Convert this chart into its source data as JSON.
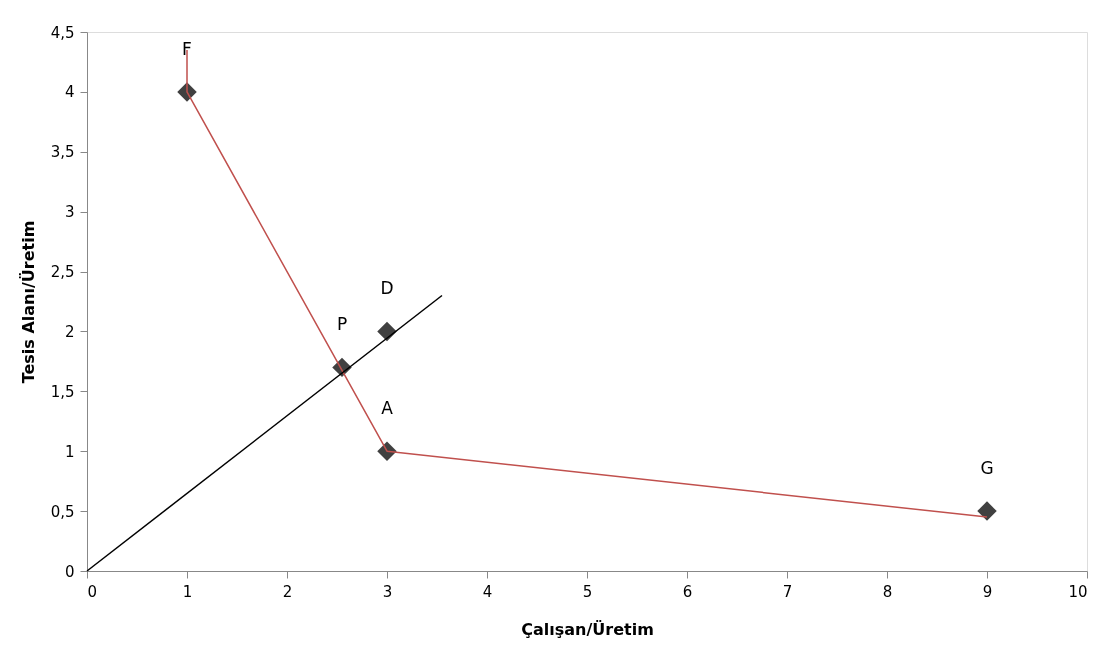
{
  "chart_data": {
    "type": "scatter",
    "xlabel": "Çalışan/Üretim",
    "ylabel": "Tesis Alanı/Üretim",
    "xlim": [
      0,
      10
    ],
    "xticks": [
      0,
      1,
      2,
      3,
      4,
      5,
      6,
      7,
      8,
      9,
      10
    ],
    "ylim": [
      0,
      4.5
    ],
    "yticks": [
      0,
      {
        "value": 0.5,
        "label": "0,5"
      },
      1,
      {
        "value": 1.5,
        "label": "1,5"
      },
      2,
      {
        "value": 2.5,
        "label": "2,5"
      },
      3,
      {
        "value": 3.5,
        "label": "3,5"
      },
      4,
      {
        "value": 4.5,
        "label": "4,5"
      }
    ],
    "grid": false,
    "series": [
      {
        "type": "line",
        "color": "#c0504d",
        "marker": "none",
        "line_style": "solid",
        "x": [
          1,
          1,
          3,
          9
        ],
        "values": [
          4.35,
          4,
          1,
          0.45
        ]
      },
      {
        "type": "line",
        "color": "#000000",
        "marker": "none",
        "line_style": "solid",
        "x": [
          0,
          3.55
        ],
        "values": [
          0,
          2.3
        ]
      },
      {
        "color": "#404040",
        "marker": "diamond",
        "x": [
          1,
          3,
          2.55,
          3,
          9
        ],
        "values": [
          4,
          2,
          1.7,
          1,
          0.5
        ]
      }
    ],
    "annotations": [
      {
        "text": "F",
        "x": 1,
        "y": 4
      },
      {
        "text": "D",
        "x": 3,
        "y": 2
      },
      {
        "text": "P",
        "x": 2.55,
        "y": 1.7
      },
      {
        "text": "A",
        "x": 3,
        "y": 1
      },
      {
        "text": "G",
        "x": 9,
        "y": 0.5
      }
    ]
  }
}
